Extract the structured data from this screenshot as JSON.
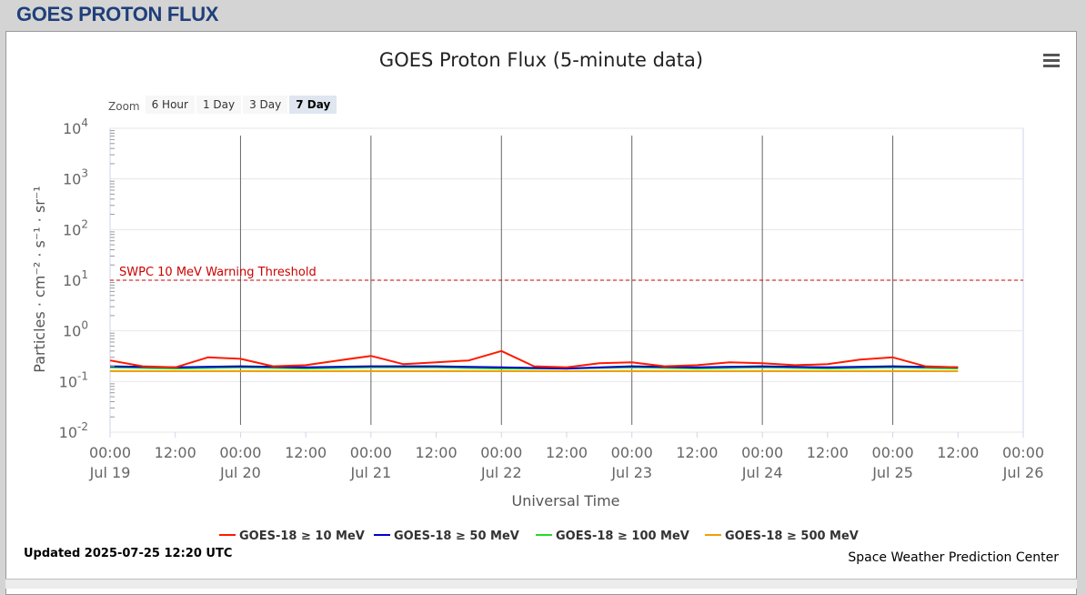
{
  "page": {
    "header_title": "GOES PROTON FLUX"
  },
  "chart_data": {
    "type": "line",
    "title": "GOES Proton Flux (5-minute data)",
    "xlabel": "Universal Time",
    "ylabel": "Particles · cm⁻² · s⁻¹ · sr⁻¹",
    "yscale": "log",
    "ylim": [
      0.01,
      10000
    ],
    "y_ticks": [
      {
        "base": "10",
        "exp": "-2"
      },
      {
        "base": "10",
        "exp": "-1"
      },
      {
        "base": "10",
        "exp": "0"
      },
      {
        "base": "10",
        "exp": "1"
      },
      {
        "base": "10",
        "exp": "2"
      },
      {
        "base": "10",
        "exp": "3"
      },
      {
        "base": "10",
        "exp": "4"
      }
    ],
    "xlim": [
      "2025-07-19 00:00",
      "2025-07-26 00:00"
    ],
    "x_ticks": [
      {
        "time": "00:00",
        "date": "Jul 19"
      },
      {
        "time": "12:00",
        "date": ""
      },
      {
        "time": "00:00",
        "date": "Jul 20"
      },
      {
        "time": "12:00",
        "date": ""
      },
      {
        "time": "00:00",
        "date": "Jul 21"
      },
      {
        "time": "12:00",
        "date": ""
      },
      {
        "time": "00:00",
        "date": "Jul 22"
      },
      {
        "time": "12:00",
        "date": ""
      },
      {
        "time": "00:00",
        "date": "Jul 23"
      },
      {
        "time": "12:00",
        "date": ""
      },
      {
        "time": "00:00",
        "date": "Jul 24"
      },
      {
        "time": "12:00",
        "date": ""
      },
      {
        "time": "00:00",
        "date": "Jul 25"
      },
      {
        "time": "12:00",
        "date": ""
      },
      {
        "time": "00:00",
        "date": "Jul 26"
      }
    ],
    "threshold": {
      "label": "SWPC 10 MeV Warning Threshold",
      "value": 10,
      "color": "#cc0000"
    },
    "legend_position": "bottom",
    "grid": true,
    "series": [
      {
        "name": "GOES-18 ≥ 10 MeV",
        "color": "#ff1a00",
        "x": [
          "2025-07-19 00:00",
          "2025-07-19 06:00",
          "2025-07-19 12:00",
          "2025-07-19 18:00",
          "2025-07-20 00:00",
          "2025-07-20 06:00",
          "2025-07-20 12:00",
          "2025-07-20 18:00",
          "2025-07-21 00:00",
          "2025-07-21 06:00",
          "2025-07-21 12:00",
          "2025-07-21 18:00",
          "2025-07-22 00:00",
          "2025-07-22 06:00",
          "2025-07-22 12:00",
          "2025-07-22 18:00",
          "2025-07-23 00:00",
          "2025-07-23 06:00",
          "2025-07-23 12:00",
          "2025-07-23 18:00",
          "2025-07-24 00:00",
          "2025-07-24 06:00",
          "2025-07-24 12:00",
          "2025-07-24 18:00",
          "2025-07-25 00:00",
          "2025-07-25 06:00",
          "2025-07-25 12:00"
        ],
        "values": [
          0.26,
          0.2,
          0.19,
          0.3,
          0.28,
          0.2,
          0.21,
          0.26,
          0.32,
          0.22,
          0.24,
          0.26,
          0.4,
          0.2,
          0.19,
          0.23,
          0.24,
          0.2,
          0.21,
          0.24,
          0.23,
          0.21,
          0.22,
          0.27,
          0.3,
          0.2,
          0.19
        ]
      },
      {
        "name": "GOES-18 ≥ 50 MeV",
        "color": "#0000cc",
        "x": [
          "2025-07-19 00:00",
          "2025-07-19 12:00",
          "2025-07-20 00:00",
          "2025-07-20 12:00",
          "2025-07-21 00:00",
          "2025-07-21 12:00",
          "2025-07-22 00:00",
          "2025-07-22 12:00",
          "2025-07-23 00:00",
          "2025-07-23 12:00",
          "2025-07-24 00:00",
          "2025-07-24 12:00",
          "2025-07-25 00:00",
          "2025-07-25 12:00"
        ],
        "values": [
          0.2,
          0.19,
          0.2,
          0.19,
          0.2,
          0.2,
          0.19,
          0.18,
          0.2,
          0.19,
          0.2,
          0.19,
          0.2,
          0.19
        ]
      },
      {
        "name": "GOES-18 ≥ 100 MeV",
        "color": "#22dd22",
        "x": [
          "2025-07-19 00:00",
          "2025-07-19 12:00",
          "2025-07-20 00:00",
          "2025-07-20 12:00",
          "2025-07-21 00:00",
          "2025-07-21 12:00",
          "2025-07-22 00:00",
          "2025-07-22 12:00",
          "2025-07-23 00:00",
          "2025-07-23 12:00",
          "2025-07-24 00:00",
          "2025-07-24 12:00",
          "2025-07-25 00:00",
          "2025-07-25 12:00"
        ],
        "values": [
          0.19,
          0.18,
          0.19,
          0.18,
          0.19,
          0.19,
          0.18,
          0.18,
          0.19,
          0.18,
          0.19,
          0.18,
          0.19,
          0.18
        ]
      },
      {
        "name": "GOES-18 ≥ 500 MeV",
        "color": "#f0a000",
        "x": [
          "2025-07-19 00:00",
          "2025-07-19 12:00",
          "2025-07-20 00:00",
          "2025-07-20 12:00",
          "2025-07-21 00:00",
          "2025-07-21 12:00",
          "2025-07-22 00:00",
          "2025-07-22 12:00",
          "2025-07-23 00:00",
          "2025-07-23 12:00",
          "2025-07-24 00:00",
          "2025-07-24 12:00",
          "2025-07-25 00:00",
          "2025-07-25 12:00"
        ],
        "values": [
          0.16,
          0.16,
          0.16,
          0.16,
          0.16,
          0.16,
          0.16,
          0.16,
          0.16,
          0.16,
          0.16,
          0.16,
          0.16,
          0.16
        ]
      }
    ]
  },
  "zoom": {
    "label": "Zoom",
    "buttons": [
      {
        "label": "6 Hour",
        "active": false
      },
      {
        "label": "1 Day",
        "active": false
      },
      {
        "label": "3 Day",
        "active": false
      },
      {
        "label": "7 Day",
        "active": true
      }
    ]
  },
  "footer": {
    "updated": "Updated 2025-07-25 12:20 UTC",
    "credit": "Space Weather Prediction Center"
  },
  "menu_icon": "hamburger-menu-icon"
}
